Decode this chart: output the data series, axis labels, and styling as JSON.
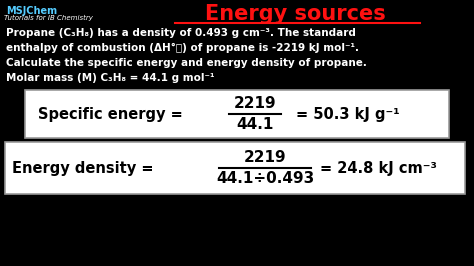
{
  "bg_color": "#000000",
  "title": "Energy sources",
  "title_color": "#ff1111",
  "logo_line1": "MSJChem",
  "logo_line2": "Tutorials for IB Chemistry",
  "logo_color1": "#55ccff",
  "logo_color2": "#ffffff",
  "body_text_color": "#ffffff",
  "body_lines": [
    "Propane (C₃H₈) has a density of 0.493 g cm⁻³. The standard",
    "enthalpy of combustion (ΔH°ⲟ) of propane is -2219 kJ mol⁻¹.",
    "Calculate the specific energy and energy density of propane.",
    "Molar mass (M) C₃H₈ = 44.1 g mol⁻¹"
  ],
  "box1_label": "Specific energy =",
  "box1_numerator": "2219",
  "box1_denominator": "44.1",
  "box1_result": "= 50.3 kJ g⁻¹",
  "box2_label": "Energy density =",
  "box2_numerator": "2219",
  "box2_denominator": "44.1÷0.493",
  "box2_result": "= 24.8 kJ cm⁻³",
  "box_bg": "#ffffff",
  "box_text_color": "#000000",
  "box_edge_color": "#999999"
}
